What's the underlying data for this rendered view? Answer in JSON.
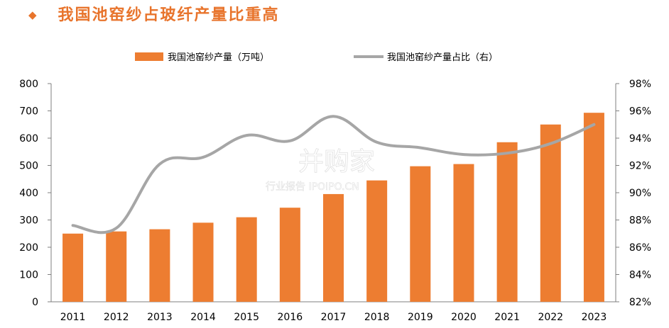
{
  "header": {
    "bullet": "◆",
    "title": "我国池窑纱占玻纤产量比重高"
  },
  "watermark": {
    "brand": "并购家",
    "sub": "行业报告 IPOIPO.CN"
  },
  "colors": {
    "bar": "#ed7d31",
    "line": "#a6a6a6",
    "title": "#e8742c"
  },
  "chart_data": {
    "type": "bar",
    "categories": [
      "2011",
      "2012",
      "2013",
      "2014",
      "2015",
      "2016",
      "2017",
      "2018",
      "2019",
      "2020",
      "2021",
      "2022",
      "2023"
    ],
    "series": [
      {
        "name": "我国池窑纱产量（万吨）",
        "type": "bar",
        "axis": "left",
        "values": [
          250,
          258,
          266,
          290,
          310,
          345,
          395,
          445,
          497,
          505,
          585,
          650,
          693
        ]
      },
      {
        "name": "我国池窑纱产量占比（右）",
        "type": "line",
        "axis": "right",
        "values": [
          87.6,
          87.4,
          92.1,
          92.6,
          94.2,
          93.8,
          95.6,
          93.7,
          93.3,
          92.8,
          92.9,
          93.6,
          95.0
        ]
      }
    ],
    "y_left": {
      "min": 0,
      "max": 800,
      "ticks": [
        "0",
        "100",
        "200",
        "300",
        "400",
        "500",
        "600",
        "700",
        "800"
      ]
    },
    "y_right": {
      "min": 82,
      "max": 98,
      "ticks": [
        "82%",
        "84%",
        "86%",
        "88%",
        "90%",
        "92%",
        "94%",
        "96%",
        "98%"
      ]
    },
    "legend_position": "top",
    "grid": false
  }
}
